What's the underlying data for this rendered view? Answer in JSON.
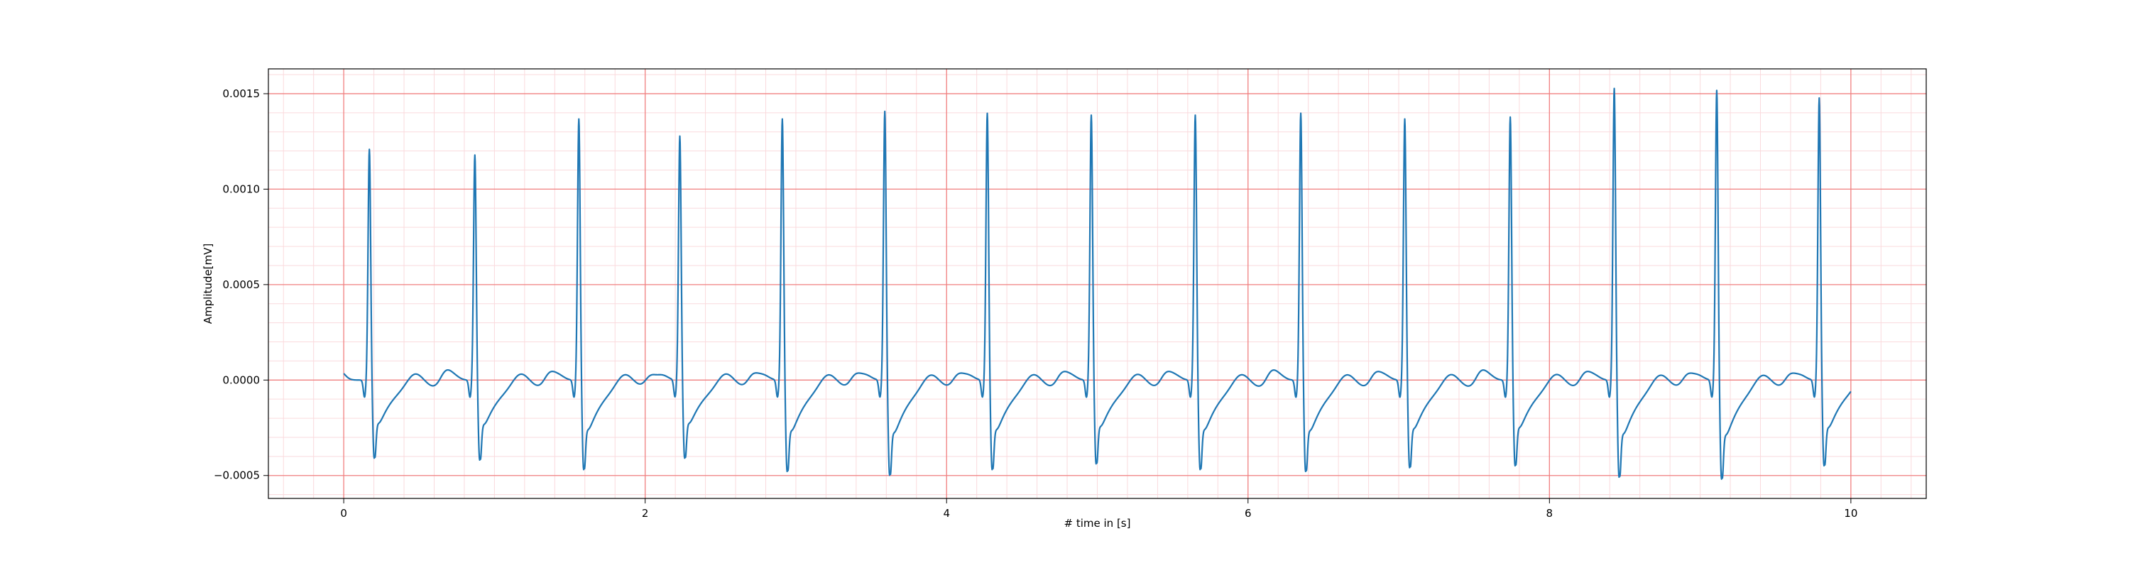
{
  "chart_data": {
    "type": "line",
    "title": "",
    "xlabel": "# time in [s]",
    "ylabel": "Amplitude[mV]",
    "xlim": [
      -0.5,
      10.5
    ],
    "ylim": [
      -0.00062,
      0.00163
    ],
    "x_ticks": [
      0,
      2,
      4,
      6,
      8,
      10
    ],
    "x_tick_labels": [
      "0",
      "2",
      "4",
      "6",
      "8",
      "10"
    ],
    "y_ticks": [
      -0.0005,
      0.0,
      0.0005,
      0.001,
      0.0015
    ],
    "y_tick_labels": [
      "−0.0005",
      "0.0000",
      "0.0005",
      "0.0010",
      "0.0015"
    ],
    "grid": {
      "major": true,
      "minor": true,
      "major_color": "#f08080",
      "minor_color": "#fadadd"
    },
    "line_color": "#1f77b4",
    "series": [
      {
        "waveform": "ecg",
        "duration_s": 10,
        "beats": [
          {
            "t": 0.17,
            "r": 0.00121,
            "s": -0.00041
          },
          {
            "t": 0.87,
            "r": 0.00118,
            "s": -0.00042
          },
          {
            "t": 1.56,
            "r": 0.00137,
            "s": -0.00047
          },
          {
            "t": 2.23,
            "r": 0.00128,
            "s": -0.00041
          },
          {
            "t": 2.91,
            "r": 0.00137,
            "s": -0.00048
          },
          {
            "t": 3.59,
            "r": 0.00141,
            "s": -0.0005
          },
          {
            "t": 4.27,
            "r": 0.0014,
            "s": -0.00047
          },
          {
            "t": 4.96,
            "r": 0.00139,
            "s": -0.00044
          },
          {
            "t": 5.65,
            "r": 0.00139,
            "s": -0.00047
          },
          {
            "t": 6.35,
            "r": 0.0014,
            "s": -0.00048
          },
          {
            "t": 7.04,
            "r": 0.00137,
            "s": -0.00046
          },
          {
            "t": 7.74,
            "r": 0.00138,
            "s": -0.00045
          },
          {
            "t": 8.43,
            "r": 0.00153,
            "s": -0.00051
          },
          {
            "t": 9.11,
            "r": 0.00152,
            "s": -0.00052
          },
          {
            "t": 9.79,
            "r": 0.00148,
            "s": -0.00045
          }
        ]
      }
    ]
  }
}
